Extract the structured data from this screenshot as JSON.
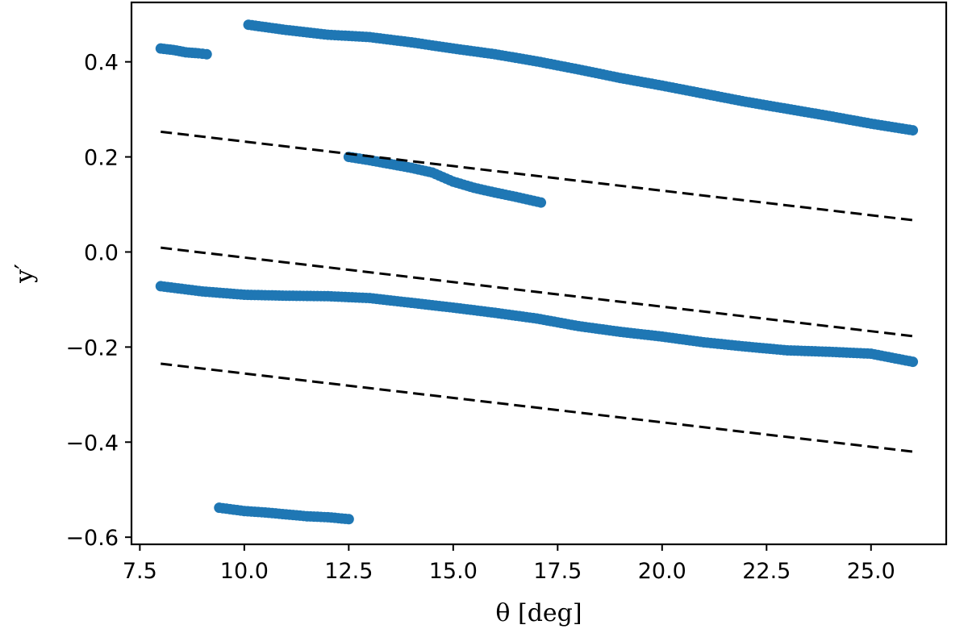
{
  "chart_data": {
    "type": "scatter",
    "xlabel": "θ [deg]",
    "ylabel": "y′",
    "xlim": [
      7.3,
      26.8
    ],
    "ylim": [
      -0.615,
      0.525
    ],
    "xticks": [
      7.5,
      10.0,
      12.5,
      15.0,
      17.5,
      20.0,
      22.5,
      25.0
    ],
    "xtick_labels": [
      "7.5",
      "10.0",
      "12.5",
      "15.0",
      "17.5",
      "20.0",
      "22.5",
      "25.0"
    ],
    "yticks": [
      0.4,
      0.2,
      0.0,
      -0.2,
      -0.4,
      -0.6
    ],
    "ytick_labels": [
      "0.4",
      "0.2",
      "0.0",
      "−0.2",
      "−0.4",
      "−0.6"
    ],
    "grid": false,
    "colors": {
      "points": "#1f77b4",
      "dashed": "#000000"
    },
    "series": [
      {
        "style": "points",
        "x": [
          8.0,
          8.3,
          8.6,
          8.9,
          9.1
        ],
        "y": [
          0.428,
          0.425,
          0.42,
          0.418,
          0.416
        ]
      },
      {
        "style": "points",
        "x": [
          10.1,
          11.0,
          12.0,
          13.0,
          14.0,
          15.0,
          16.0,
          17.0,
          18.0,
          19.0,
          20.0,
          21.0,
          22.0,
          23.0,
          24.0,
          25.0,
          26.0
        ],
        "y": [
          0.478,
          0.467,
          0.457,
          0.452,
          0.441,
          0.428,
          0.416,
          0.401,
          0.384,
          0.366,
          0.35,
          0.333,
          0.316,
          0.301,
          0.286,
          0.27,
          0.256
        ]
      },
      {
        "style": "points",
        "x": [
          12.5,
          13.0,
          13.5,
          14.0,
          14.5,
          15.0,
          15.5,
          16.0,
          16.5,
          17.1
        ],
        "y": [
          0.2,
          0.193,
          0.185,
          0.177,
          0.167,
          0.148,
          0.135,
          0.125,
          0.116,
          0.104
        ]
      },
      {
        "style": "points",
        "x": [
          8.0,
          9.0,
          10.0,
          11.0,
          12.0,
          13.0,
          14.0,
          15.0,
          16.0,
          17.0,
          18.0,
          19.0,
          20.0,
          21.0,
          22.0,
          23.0,
          24.0,
          25.0,
          26.0
        ],
        "y": [
          -0.072,
          -0.083,
          -0.09,
          -0.092,
          -0.093,
          -0.097,
          -0.107,
          -0.117,
          -0.128,
          -0.14,
          -0.156,
          -0.168,
          -0.178,
          -0.19,
          -0.199,
          -0.207,
          -0.21,
          -0.214,
          -0.231
        ]
      },
      {
        "style": "points",
        "x": [
          9.4,
          10.0,
          10.5,
          11.0,
          11.5,
          12.0,
          12.5
        ],
        "y": [
          -0.538,
          -0.545,
          -0.548,
          -0.552,
          -0.556,
          -0.558,
          -0.562
        ]
      },
      {
        "style": "dashed",
        "x": [
          8.0,
          26.0
        ],
        "y": [
          0.253,
          0.067
        ]
      },
      {
        "style": "dashed",
        "x": [
          8.0,
          26.0
        ],
        "y": [
          0.009,
          -0.177
        ]
      },
      {
        "style": "dashed",
        "x": [
          8.0,
          26.0
        ],
        "y": [
          -0.235,
          -0.42
        ]
      }
    ]
  }
}
